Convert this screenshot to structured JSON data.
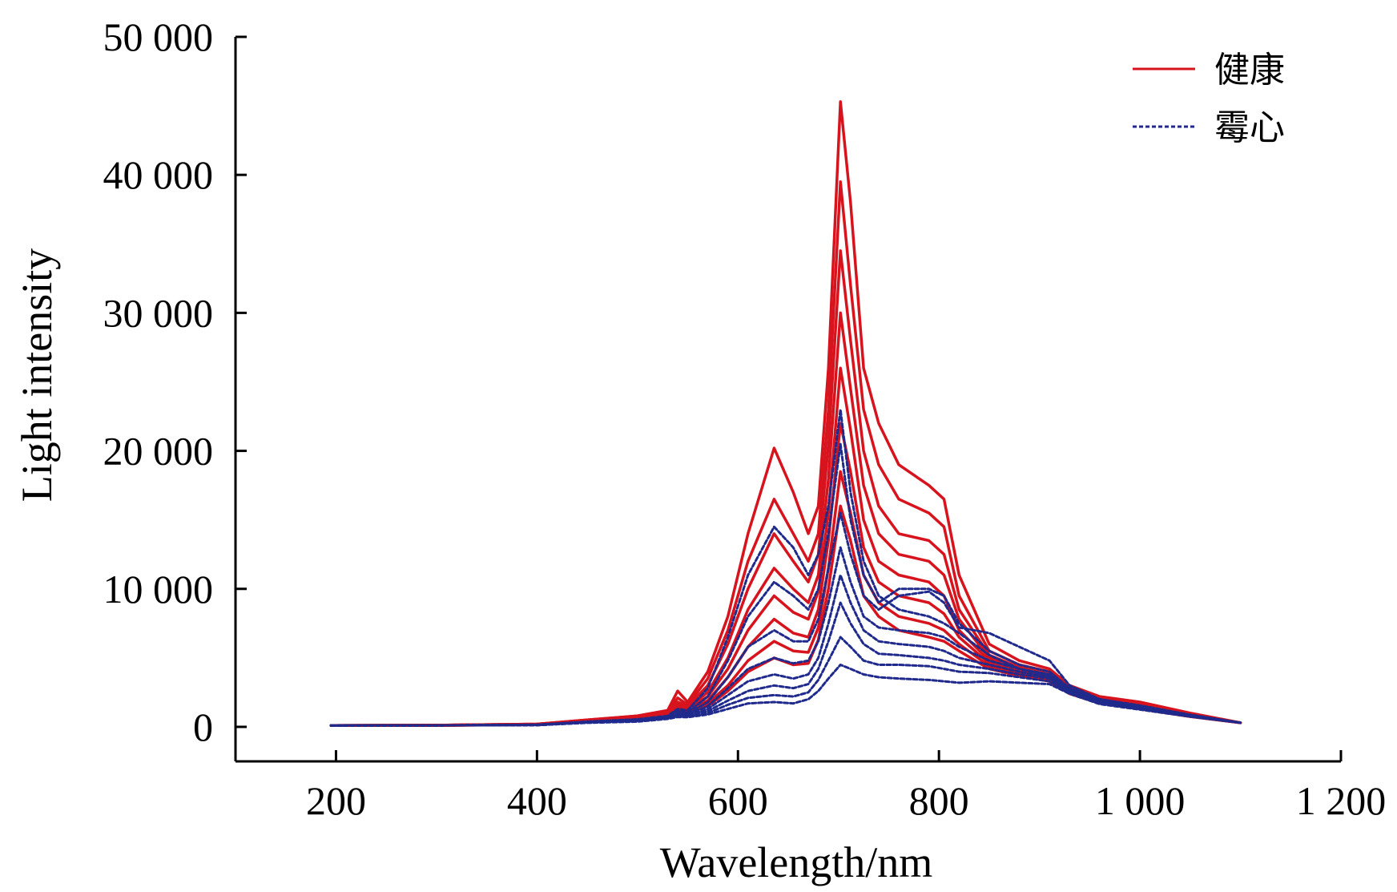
{
  "chart_data": {
    "type": "line",
    "title": "",
    "xlabel": "Wavelength/nm",
    "ylabel": "Light intensity",
    "xlim": [
      100,
      1200
    ],
    "ylim": [
      -2500,
      50000
    ],
    "x_ticks": [
      200,
      400,
      600,
      800,
      1000,
      1200
    ],
    "x_tick_labels": [
      "200",
      "400",
      "600",
      "800",
      "1 000",
      "1 200"
    ],
    "y_ticks": [
      0,
      10000,
      20000,
      30000,
      40000,
      50000
    ],
    "y_tick_labels": [
      "0",
      "10 000",
      "20 000",
      "30 000",
      "40 000",
      "50 000"
    ],
    "grid": false,
    "legend_position": "top-right",
    "legend": [
      {
        "label": "健康",
        "color": "#d7141e",
        "style": "solid"
      },
      {
        "label": "霉心",
        "color": "#1f2a8c",
        "style": "dashed"
      }
    ],
    "x": [
      195,
      300,
      400,
      450,
      500,
      530,
      540,
      550,
      570,
      590,
      610,
      636,
      655,
      670,
      680,
      690,
      702,
      712,
      725,
      740,
      760,
      790,
      805,
      820,
      850,
      880,
      910,
      930,
      960,
      1000,
      1050,
      1100
    ],
    "groups": [
      {
        "name": "健康",
        "color": "#d7141e",
        "style": "solid",
        "series": [
          {
            "values": [
              100,
              120,
              200,
              500,
              800,
              1200,
              2600,
              1800,
              4000,
              8000,
              14000,
              20200,
              17000,
              14000,
              16000,
              26000,
              45300,
              38000,
              26000,
              22000,
              19000,
              17500,
              16500,
              11000,
              6000,
              4800,
              4200,
              3000,
              2200,
              1800,
              1000,
              300
            ]
          },
          {
            "values": [
              100,
              120,
              200,
              500,
              800,
              1150,
              2100,
              1600,
              3500,
              7000,
              12000,
              16500,
              14000,
              12000,
              14000,
              23000,
              39500,
              32000,
              23000,
              19000,
              16500,
              15500,
              14500,
              9500,
              5500,
              4500,
              4000,
              2900,
              2100,
              1700,
              950,
              300
            ]
          },
          {
            "values": [
              100,
              120,
              200,
              450,
              750,
              1100,
              1800,
              1500,
              3000,
              6000,
              10000,
              14000,
              12000,
              10500,
              12500,
              20500,
              34500,
              28000,
              20000,
              16000,
              14000,
              13500,
              12500,
              8500,
              5200,
              4300,
              3800,
              2800,
              2000,
              1600,
              900,
              300
            ]
          },
          {
            "values": [
              100,
              120,
              180,
              450,
              700,
              1000,
              1600,
              1400,
              2500,
              5000,
              8500,
              11500,
              10000,
              9000,
              11000,
              18000,
              30000,
              24500,
              17500,
              14000,
              12500,
              12000,
              11000,
              7800,
              5000,
              4200,
              3700,
              2700,
              1900,
              1500,
              850,
              300
            ]
          },
          {
            "values": [
              100,
              110,
              180,
              400,
              650,
              950,
              1400,
              1300,
              2200,
              4200,
              7000,
              9500,
              8300,
              7800,
              9800,
              15500,
              26000,
              21500,
              15000,
              12000,
              11000,
              10500,
              9500,
              7000,
              4800,
              4000,
              3600,
              2600,
              1850,
              1450,
              800,
              300
            ]
          },
          {
            "values": [
              100,
              110,
              170,
              400,
              600,
              900,
              1300,
              1200,
              1900,
              3600,
              5800,
              7800,
              6800,
              6500,
              8500,
              13500,
              22000,
              18500,
              13000,
              10500,
              9500,
              9000,
              8200,
              6500,
              4600,
              3900,
              3500,
              2550,
              1800,
              1400,
              780,
              300
            ]
          },
          {
            "values": [
              100,
              110,
              160,
              380,
              550,
              850,
              1200,
              1100,
              1700,
              3000,
              4800,
              6200,
              5500,
              5400,
              7200,
              11500,
              18500,
              15500,
              11000,
              9000,
              8000,
              7500,
              7000,
              6000,
              4400,
              3800,
              3400,
              2500,
              1750,
              1350,
              760,
              300
            ]
          },
          {
            "values": [
              100,
              110,
              160,
              380,
              500,
              800,
              1100,
              1000,
              1500,
              2600,
              4000,
              5000,
              4500,
              4600,
              6300,
              10000,
              16000,
              13500,
              9500,
              8000,
              7000,
              6500,
              6200,
              5500,
              4200,
              3700,
              3300,
              2400,
              1700,
              1300,
              740,
              300
            ]
          }
        ]
      },
      {
        "name": "霉心",
        "color": "#1f2a8c",
        "style": "dashed",
        "series": [
          {
            "values": [
              100,
              110,
              160,
              380,
              550,
              800,
              1300,
              1200,
              2800,
              6500,
              11000,
              14500,
              13000,
              11000,
              12500,
              16000,
              23000,
              17000,
              12000,
              9500,
              8500,
              8000,
              7500,
              6800,
              5200,
              4200,
              3800,
              2700,
              1900,
              1500,
              850,
              300
            ]
          },
          {
            "values": [
              100,
              110,
              150,
              350,
              500,
              750,
              1150,
              1050,
              2200,
              4800,
              8000,
              10500,
              9500,
              8500,
              10000,
              14000,
              20500,
              15000,
              11000,
              9000,
              10000,
              10000,
              9500,
              7500,
              5500,
              4500,
              4000,
              2800,
              2000,
              1550,
              880,
              300
            ]
          },
          {
            "values": [
              100,
              110,
              150,
              350,
              500,
              700,
              1000,
              950,
              1800,
              3600,
              5800,
              7000,
              6200,
              6200,
              7800,
              11500,
              15500,
              12500,
              9500,
              8500,
              9500,
              9800,
              9000,
              7200,
              6800,
              5800,
              4800,
              3000,
              2000,
              1500,
              850,
              300
            ]
          },
          {
            "values": [
              100,
              110,
              140,
              330,
              480,
              680,
              900,
              880,
              1500,
              2800,
              4200,
              5000,
              4600,
              4800,
              6200,
              9000,
              13000,
              10500,
              8000,
              7200,
              7000,
              6800,
              6500,
              5800,
              4800,
              4200,
              3700,
              2650,
              1850,
              1450,
              820,
              300
            ]
          },
          {
            "values": [
              100,
              110,
              140,
              320,
              450,
              650,
              850,
              820,
              1300,
              2300,
              3300,
              3800,
              3500,
              3800,
              5000,
              7500,
              11000,
              9000,
              7000,
              6200,
              6000,
              5800,
              5500,
              5000,
              4500,
              4000,
              3600,
              2600,
              1800,
              1400,
              800,
              300
            ]
          },
          {
            "values": [
              100,
              110,
              130,
              320,
              420,
              620,
              800,
              780,
              1150,
              1900,
              2600,
              3000,
              2800,
              3100,
              4200,
              6200,
              9000,
              7500,
              6000,
              5300,
              5200,
              5000,
              4800,
              4500,
              4200,
              3800,
              3500,
              2550,
              1750,
              1350,
              780,
              300
            ]
          },
          {
            "values": [
              100,
              110,
              130,
              300,
              400,
              600,
              760,
              740,
              1000,
              1600,
              2100,
              2300,
              2200,
              2500,
              3400,
              4800,
              6500,
              5800,
              4800,
              4500,
              4500,
              4400,
              4200,
              4000,
              3900,
              3600,
              3300,
              2500,
              1700,
              1300,
              760,
              300
            ]
          },
          {
            "values": [
              100,
              110,
              120,
              300,
              380,
              580,
              720,
              700,
              900,
              1300,
              1700,
              1800,
              1700,
              2000,
              2600,
              3500,
              4500,
              4200,
              3800,
              3600,
              3500,
              3400,
              3300,
              3200,
              3300,
              3200,
              3100,
              2400,
              1650,
              1250,
              740,
              300
            ]
          }
        ]
      }
    ]
  }
}
